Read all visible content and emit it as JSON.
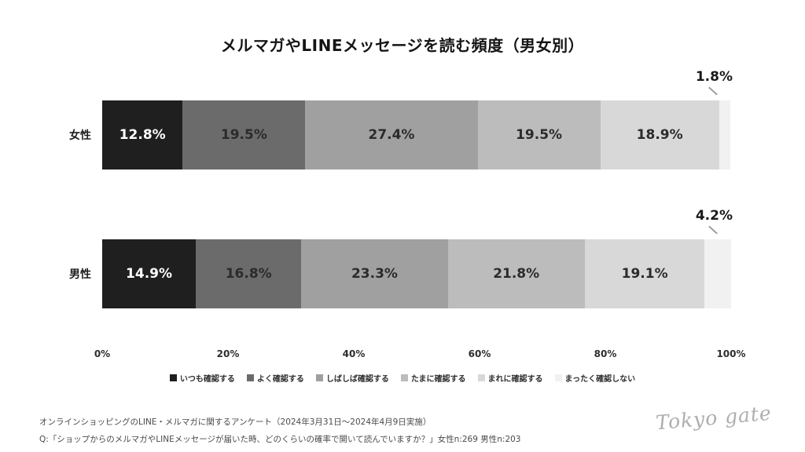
{
  "chart_data": {
    "type": "bar",
    "orientation": "horizontal",
    "stacked": true,
    "grid": false,
    "legend_position": "bottom",
    "title": "メルマガやLINEメッセージを読む頻度（男女別）",
    "categories": [
      "女性",
      "男性"
    ],
    "series": [
      {
        "name": "いつも確認する",
        "color": "#1f1f1f",
        "label_color": "#ffffff",
        "values": [
          12.8,
          14.9
        ]
      },
      {
        "name": "よく確認する",
        "color": "#6b6b6b",
        "label_color": "#2b2b2b",
        "values": [
          19.5,
          16.8
        ]
      },
      {
        "name": "しばしば確認する",
        "color": "#a0a0a0",
        "label_color": "#2b2b2b",
        "values": [
          27.4,
          23.3
        ]
      },
      {
        "name": "たまに確認する",
        "color": "#bcbcbc",
        "label_color": "#2b2b2b",
        "values": [
          19.5,
          21.8
        ]
      },
      {
        "name": "まれに確認する",
        "color": "#d8d8d8",
        "label_color": "#2b2b2b",
        "values": [
          18.9,
          19.1
        ]
      },
      {
        "name": "まったく確認しない",
        "color": "#f1f1f1",
        "label_color": "#2b2b2b",
        "values": [
          1.8,
          4.2
        ],
        "label_outside": true
      }
    ],
    "x_ticks": [
      "0%",
      "20%",
      "40%",
      "60%",
      "80%",
      "100%"
    ],
    "xlim": [
      0,
      100
    ],
    "value_suffix": "%"
  },
  "footer": {
    "source_line": "オンラインショッピングのLINE・メルマガに関するアンケート（2024年3月31日～2024年4月9日実施）",
    "question_line": "Q:「ショップからのメルマガやLINEメッセージが届いた時、どのくらいの確率で開いて読んでいますか？」女性n:269 男性n:203",
    "logo_text": "Tokyo gate"
  }
}
